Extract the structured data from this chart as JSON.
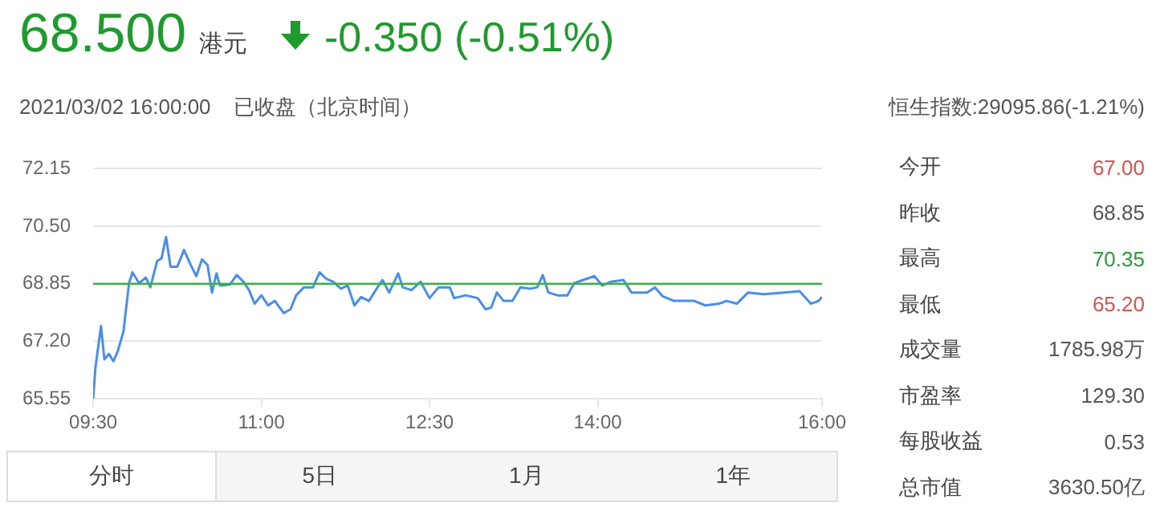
{
  "chart_data": {
    "type": "line",
    "annotations": [
      "68.500",
      "港元",
      "-0.350 (-0.51%)",
      "2021/03/02 16:00:00",
      "已收盘（北京时间）",
      "恒生指数:29095.86(-1.21%)",
      "今开",
      "67.00",
      "昨收",
      "68.85",
      "最高",
      "70.35",
      "最低",
      "65.20",
      "成交量",
      "1785.98万",
      "市盈率",
      "129.30",
      "每股收益",
      "0.53",
      "总市值",
      "3630.50亿",
      "分时",
      "5日",
      "1月",
      "1年"
    ],
    "x": [
      9.5,
      9.52,
      9.57,
      9.6,
      9.64,
      9.68,
      9.72,
      9.77,
      9.82,
      9.85,
      9.91,
      9.97,
      10.01,
      10.07,
      10.11,
      10.15,
      10.19,
      10.25,
      10.31,
      10.37,
      10.42,
      10.47,
      10.52,
      10.56,
      10.6,
      10.63,
      10.72,
      10.78,
      10.84,
      10.89,
      10.94,
      11.0,
      11.06,
      11.12,
      11.2,
      11.26,
      11.31,
      11.38,
      11.46,
      11.52,
      11.58,
      11.64,
      11.71,
      11.77,
      11.83,
      11.89,
      11.96,
      12.02,
      12.08,
      12.14,
      12.22,
      12.26,
      12.34,
      12.42,
      12.5,
      12.58,
      12.68,
      12.72,
      12.82,
      12.93,
      13.0,
      13.05,
      13.1,
      13.16,
      13.24,
      13.31,
      13.4,
      13.46,
      13.51,
      13.56,
      13.64,
      13.73,
      13.79,
      13.87,
      13.97,
      14.04,
      14.12,
      14.23,
      14.3,
      14.44,
      14.51,
      14.58,
      14.68,
      14.86,
      14.96,
      15.08,
      15.15,
      15.24,
      15.34,
      15.48,
      15.66,
      15.8,
      15.9,
      15.97,
      16.0
    ],
    "series": [
      {
        "color": "#4a8fe7",
        "values": [
          65.55,
          66.44,
          67.64,
          66.68,
          66.84,
          66.63,
          66.92,
          67.48,
          68.87,
          69.18,
          68.87,
          69.03,
          68.75,
          69.5,
          69.58,
          70.19,
          69.34,
          69.34,
          69.82,
          69.39,
          69.07,
          69.55,
          69.39,
          68.6,
          69.15,
          68.8,
          68.83,
          69.1,
          68.91,
          68.67,
          68.28,
          68.52,
          68.23,
          68.36,
          68.01,
          68.12,
          68.52,
          68.75,
          68.75,
          69.18,
          68.99,
          68.91,
          68.71,
          68.8,
          68.23,
          68.47,
          68.36,
          68.67,
          68.96,
          68.6,
          69.15,
          68.75,
          68.67,
          68.91,
          68.44,
          68.75,
          68.75,
          68.44,
          68.52,
          68.44,
          68.12,
          68.17,
          68.6,
          68.36,
          68.36,
          68.75,
          68.71,
          68.75,
          69.1,
          68.6,
          68.52,
          68.52,
          68.87,
          68.96,
          69.07,
          68.8,
          68.91,
          68.96,
          68.6,
          68.6,
          68.75,
          68.49,
          68.36,
          68.36,
          68.23,
          68.28,
          68.36,
          68.28,
          68.6,
          68.55,
          68.6,
          68.64,
          68.28,
          68.36,
          68.47
        ]
      }
    ],
    "xlim": [
      9.5,
      16
    ],
    "xticks": [
      {
        "value": 9.5,
        "label": "09:30"
      },
      {
        "value": 11,
        "label": "11:00"
      },
      {
        "value": 12.5,
        "label": "12:30"
      },
      {
        "value": 14,
        "label": "14:00"
      },
      {
        "value": 16,
        "label": "16:00"
      }
    ],
    "ylim": [
      65.55,
      72.15
    ],
    "yticks": [
      65.55,
      {
        "value": 67.2,
        "label": "67.20"
      },
      68.85,
      {
        "value": 70.5,
        "label": "70.50"
      },
      72.15
    ],
    "ref_lines": [
      {
        "axis": "y",
        "value": 68.85,
        "color": "#3cb043"
      }
    ],
    "grid": "y",
    "marker": "none",
    "line_style": "solid"
  }
}
